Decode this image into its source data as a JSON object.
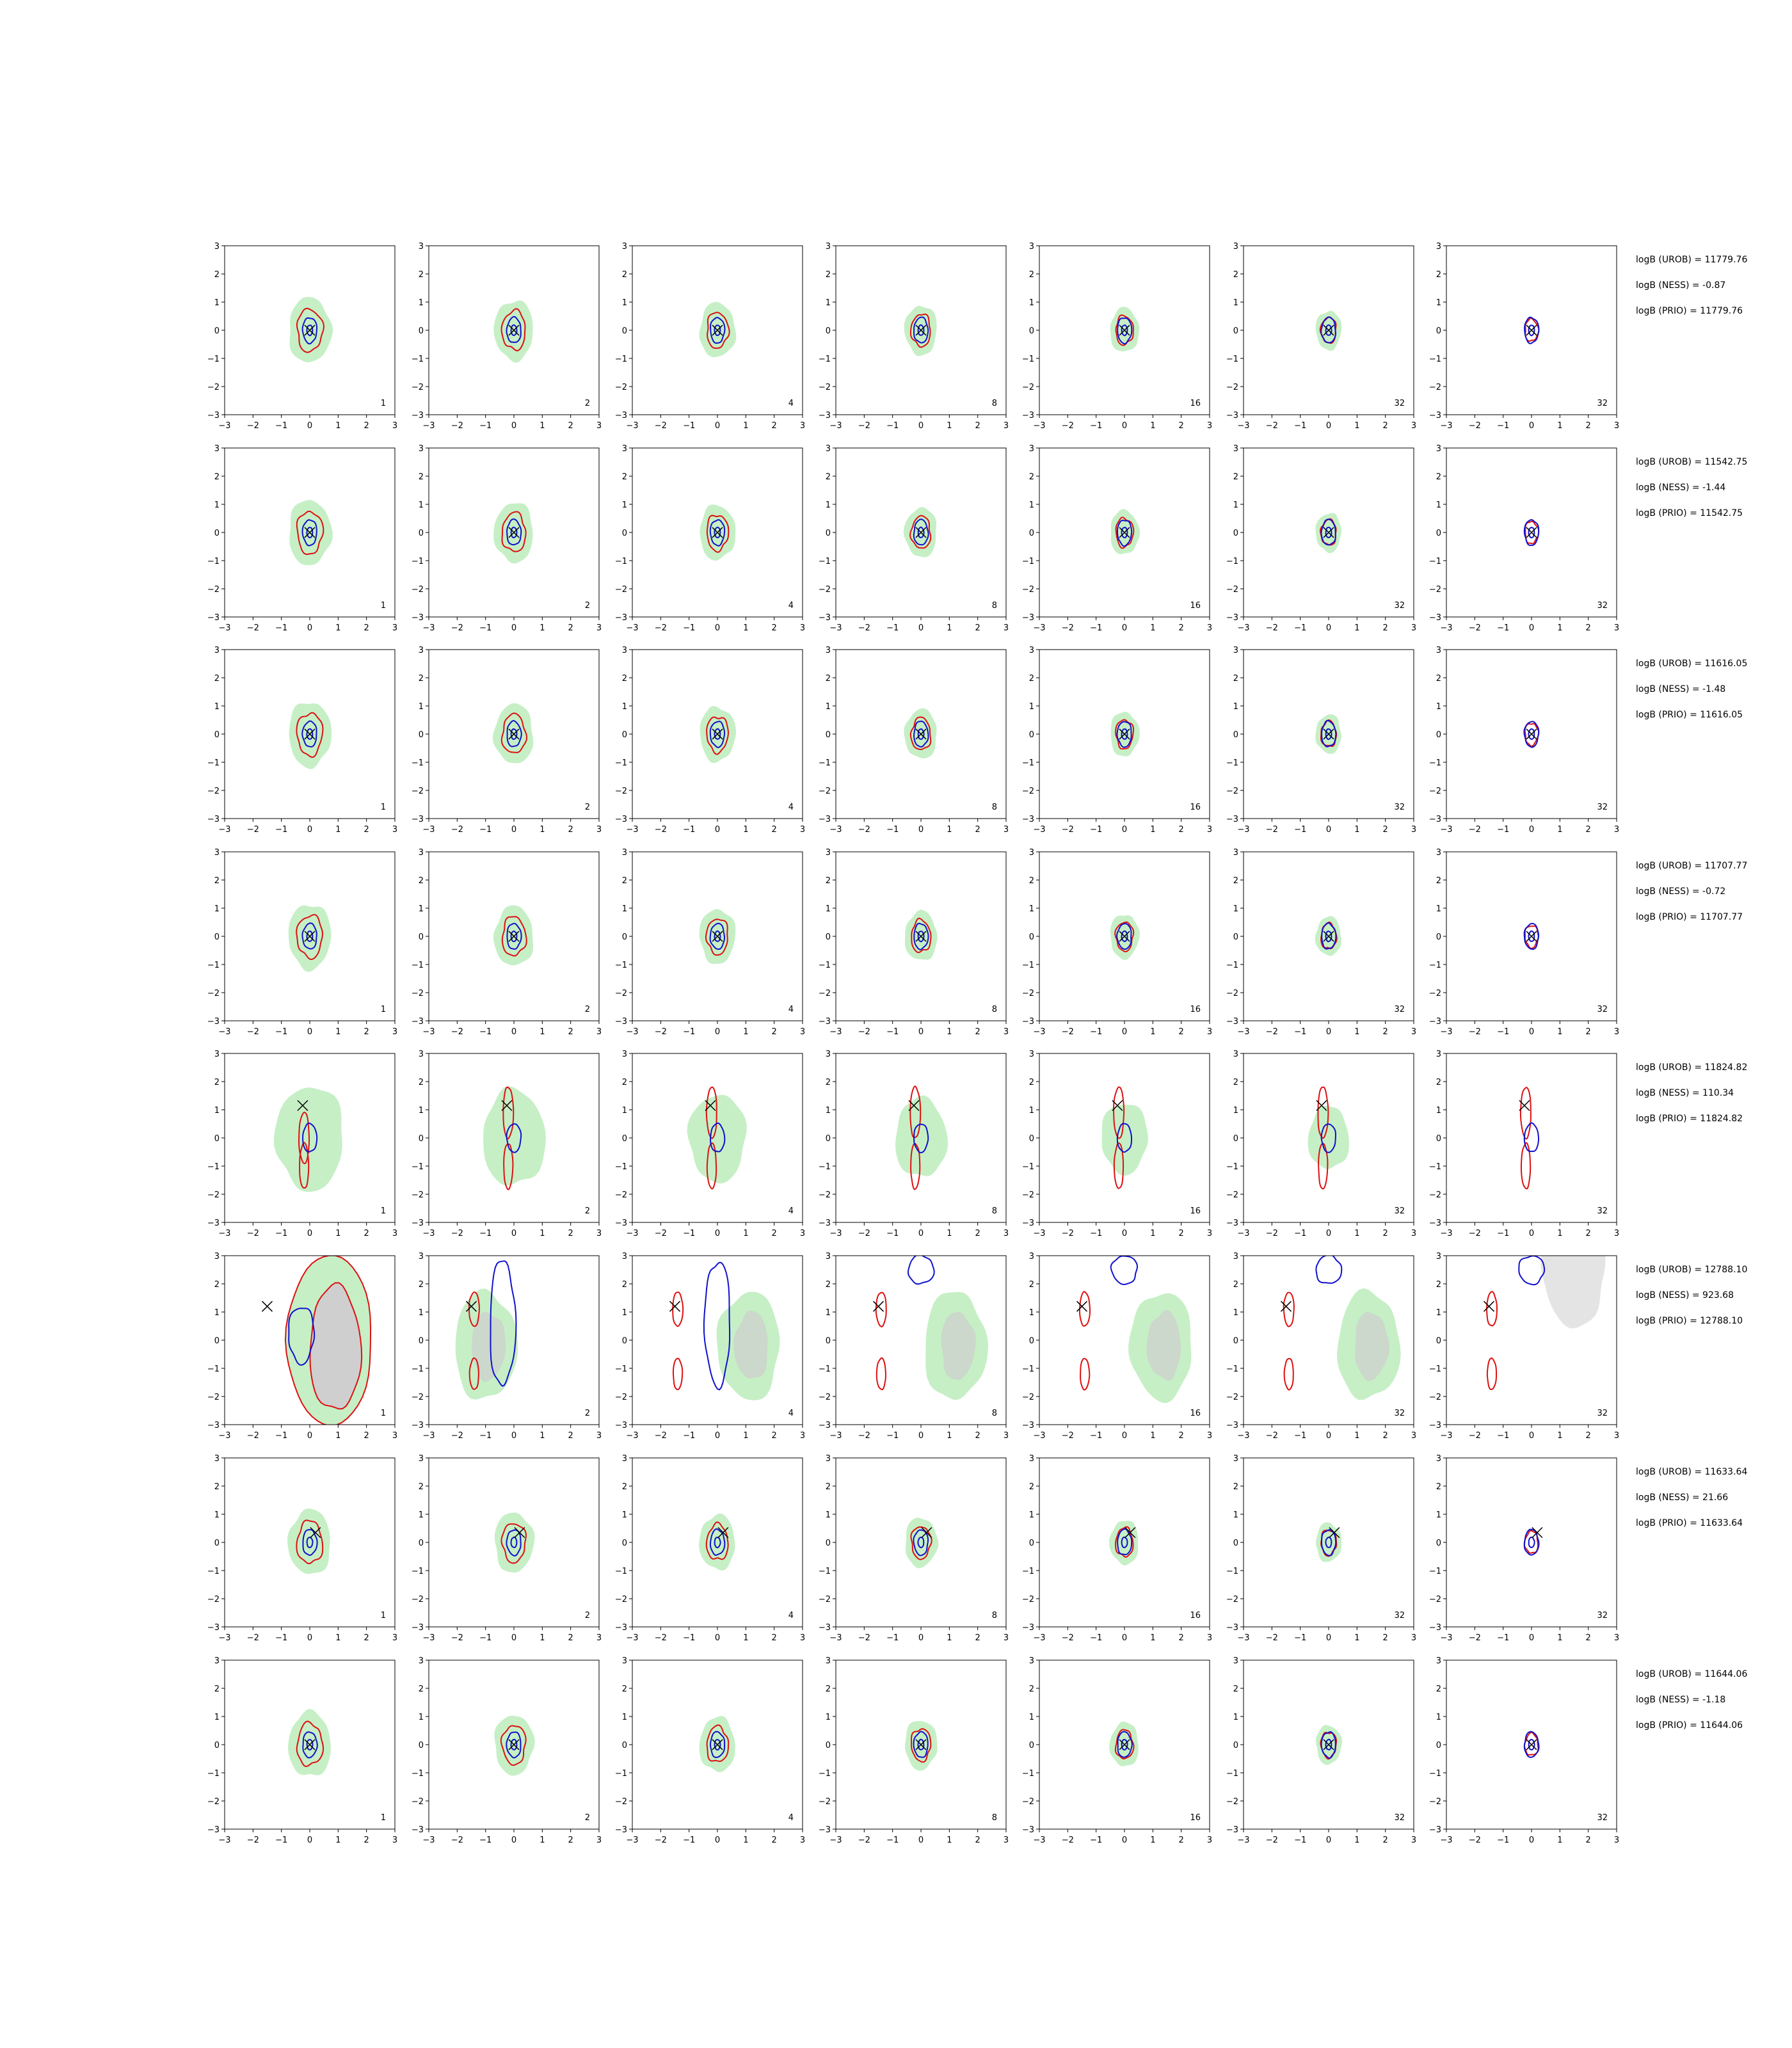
{
  "chart_data": {
    "type": "contour-grid",
    "rows": 8,
    "cols": 7,
    "panel_labels": [
      "1",
      "2",
      "4",
      "8",
      "16",
      "32",
      "32"
    ],
    "xlim": [
      -3,
      3
    ],
    "ylim": [
      -3,
      3
    ],
    "xticks": [
      "−3",
      "−2",
      "−1",
      "0",
      "1",
      "2",
      "3"
    ],
    "yticks": [
      "3",
      "2",
      "1",
      "0",
      "−1",
      "−2",
      "−3"
    ],
    "grid": false,
    "colors": {
      "red_contour": "#dd1111",
      "blue_contour": "#1111cc",
      "green_fill": "#c6efc6",
      "gray_fill": "#cfcfcf",
      "marker": "#000000"
    },
    "row_annotations": [
      [
        "logB (UROB) = 11779.76",
        "logB (NESS) = -0.87",
        "logB (PRIO) = 11779.76"
      ],
      [
        "logB (UROB) = 11542.75",
        "logB (NESS) = -1.44",
        "logB (PRIO) = 11542.75"
      ],
      [
        "logB (UROB) = 11616.05",
        "logB (NESS) = -1.48",
        "logB (PRIO) = 11616.05"
      ],
      [
        "logB (UROB) = 11707.77",
        "logB (NESS) = -0.72",
        "logB (PRIO) = 11707.77"
      ],
      [
        "logB (UROB) = 11824.82",
        "logB (NESS) = 110.34",
        "logB (PRIO) = 11824.82"
      ],
      [
        "logB (UROB) = 12788.10",
        "logB (NESS) = 923.68",
        "logB (PRIO) = 12788.10"
      ],
      [
        "logB (UROB) = 11633.64",
        "logB (NESS) = 21.66",
        "logB (PRIO) = 11633.64"
      ],
      [
        "logB (UROB) = 11644.06",
        "logB (NESS) = -1.18",
        "logB (PRIO) = 11644.06"
      ]
    ],
    "x_markers": [
      [
        0,
        0
      ],
      [
        0,
        0
      ],
      [
        0,
        0
      ],
      [
        0,
        0
      ],
      [
        -0.25,
        1.15
      ],
      [
        -1.5,
        1.2
      ],
      [
        0.2,
        0.35
      ],
      [
        0,
        0
      ]
    ]
  }
}
